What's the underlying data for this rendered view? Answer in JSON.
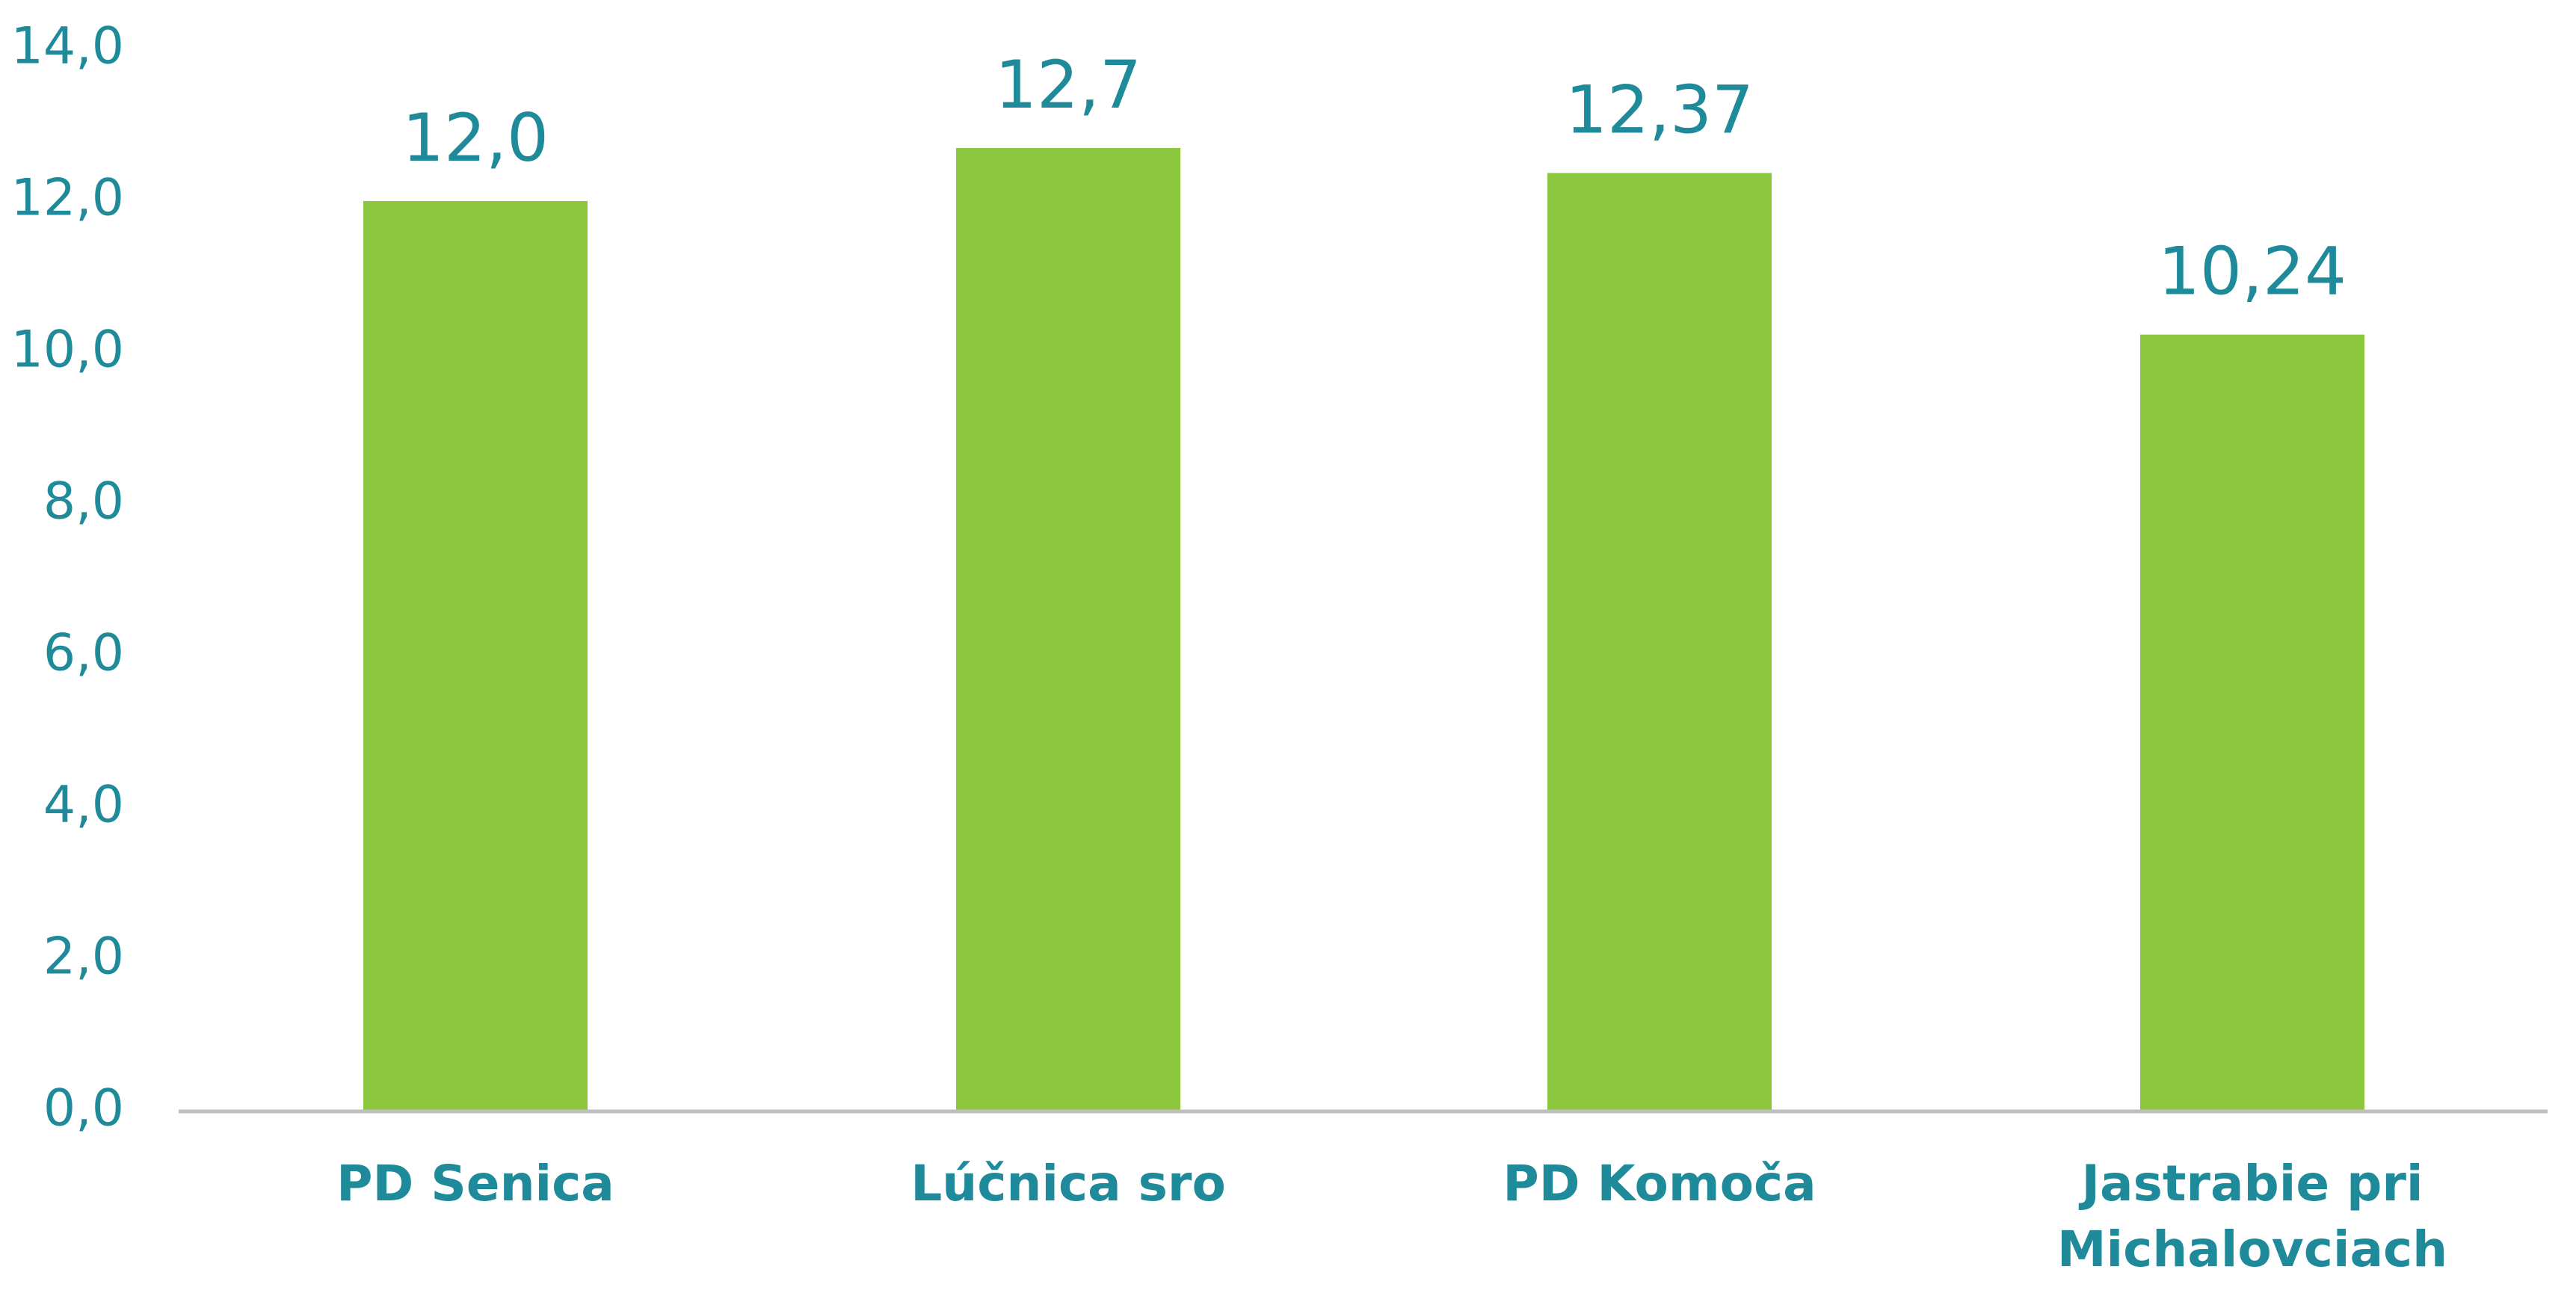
{
  "chart_data": {
    "type": "bar",
    "categories": [
      "PD Senica",
      "Lúčnica sro",
      "PD Komoča",
      "Jastrabie pri Michalovciach"
    ],
    "values": [
      12.0,
      12.7,
      12.37,
      10.24
    ],
    "value_labels": [
      "12,0",
      "12,7",
      "12,37",
      "10,24"
    ],
    "color": "#8dc63f",
    "ylim": [
      0,
      14
    ],
    "yticks": [
      {
        "value": 0,
        "label": "0,0"
      },
      {
        "value": 2,
        "label": "2,0"
      },
      {
        "value": 4,
        "label": "4,0"
      },
      {
        "value": 6,
        "label": "6,0"
      },
      {
        "value": 8,
        "label": "8,0"
      },
      {
        "value": 10,
        "label": "10,0"
      },
      {
        "value": 12,
        "label": "12,0"
      },
      {
        "value": 14,
        "label": "14,0"
      }
    ],
    "grid": false
  }
}
